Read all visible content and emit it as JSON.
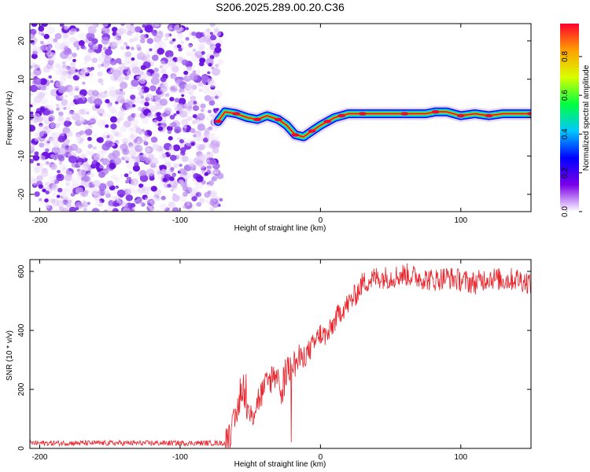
{
  "chart_data": [
    {
      "type": "heatmap",
      "title": "S206.2025.289.00.20.C36",
      "xlabel": "Height of straight line (km)",
      "ylabel": "Frequency (Hz)",
      "xlim": [
        -207,
        150
      ],
      "ylim": [
        -24.5,
        24.5
      ],
      "xticks": [
        -200,
        -100,
        0,
        100
      ],
      "yticks": [
        -20,
        -10,
        0,
        10,
        20
      ],
      "noise_region_x": [
        -207,
        -73
      ],
      "trace": {
        "name": "dominant frequency ridge",
        "x": [
          -73,
          -68,
          -60,
          -52,
          -45,
          -38,
          -30,
          -24,
          -18,
          -12,
          -6,
          0,
          5,
          10,
          15,
          20,
          30,
          45,
          60,
          75,
          82,
          90,
          100,
          110,
          120,
          130,
          150
        ],
        "y": [
          -1,
          1.5,
          1,
          0,
          -0.5,
          0.5,
          -0.5,
          -2,
          -4.5,
          -5,
          -3.5,
          -2,
          -1,
          0,
          0.5,
          1,
          1,
          1,
          1,
          1,
          1.5,
          1.5,
          0.5,
          1,
          0.5,
          1,
          1
        ]
      },
      "colorbar": {
        "label": "Normalized spectral amplitude",
        "ticks": [
          0.0,
          0.2,
          0.4,
          0.6,
          0.8
        ],
        "range": [
          0,
          0.97
        ],
        "colors": [
          "#ffffff",
          "#7a00e8",
          "#0000ff",
          "#00c8ff",
          "#00ff40",
          "#d8ff00",
          "#ffa000",
          "#ff0030"
        ]
      }
    },
    {
      "type": "line",
      "xlabel": "Height of straight line (km)",
      "ylabel": "SNR (10 * v/v)",
      "xlim": [
        -207,
        150
      ],
      "ylim": [
        0,
        640
      ],
      "xticks": [
        -200,
        -100,
        0,
        100
      ],
      "yticks": [
        0,
        200,
        400,
        600
      ],
      "series": [
        {
          "name": "SNR",
          "color": "#e8232a",
          "x": [
            -207,
            -150,
            -100,
            -68,
            -64,
            -61,
            -59,
            -57,
            -55,
            -53,
            -50,
            -45,
            -40,
            -35,
            -30,
            -28,
            -25,
            -22,
            -20,
            -15,
            -10,
            -5,
            0,
            5,
            10,
            15,
            20,
            25,
            30,
            40,
            50,
            60,
            70,
            80,
            90,
            100,
            110,
            120,
            130,
            140,
            150
          ],
          "values": [
            18,
            18,
            18,
            18,
            45,
            90,
            130,
            180,
            220,
            140,
            100,
            160,
            200,
            240,
            260,
            140,
            250,
            270,
            280,
            300,
            320,
            350,
            390,
            380,
            430,
            470,
            490,
            520,
            560,
            580,
            580,
            590,
            580,
            570,
            580,
            570,
            560,
            580,
            570,
            575,
            560
          ],
          "noise_amplitude": 18
        }
      ]
    }
  ]
}
